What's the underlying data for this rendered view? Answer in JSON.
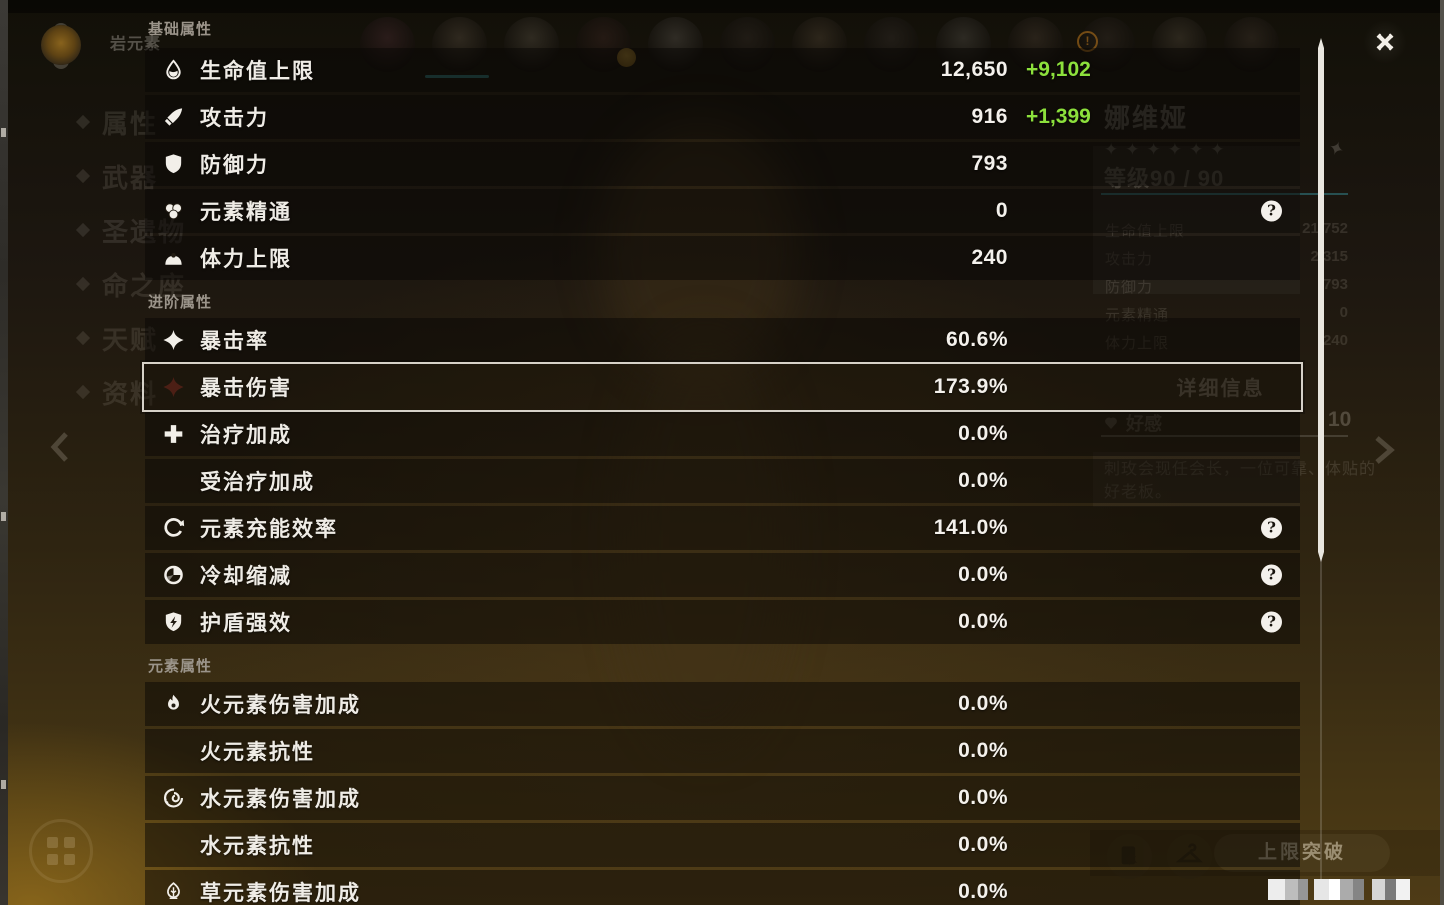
{
  "panel": {
    "help_glyph": "?",
    "sections": [
      {
        "title": "基础属性",
        "rows": [
          {
            "key": "max-hp",
            "icon": "hp",
            "label": "生命值上限",
            "value": "12,650",
            "bonus": "+9,102"
          },
          {
            "key": "atk",
            "icon": "atk",
            "label": "攻击力",
            "value": "916",
            "bonus": "+1,399"
          },
          {
            "key": "def",
            "icon": "def",
            "label": "防御力",
            "value": "793"
          },
          {
            "key": "elemental-mastery",
            "icon": "em",
            "label": "元素精通",
            "value": "0",
            "help": true
          },
          {
            "key": "max-stamina",
            "icon": "stamina",
            "label": "体力上限",
            "value": "240"
          }
        ]
      },
      {
        "title": "进阶属性",
        "rows": [
          {
            "key": "crit-rate",
            "icon": "crit",
            "label": "暴击率",
            "value": "60.6%"
          },
          {
            "key": "crit-dmg",
            "icon": "critdmg",
            "label": "暴击伤害",
            "value": "173.9%",
            "highlighted": true
          },
          {
            "key": "healing-bonus",
            "icon": "heal",
            "label": "治疗加成",
            "value": "0.0%"
          },
          {
            "key": "incoming-healing-bonus",
            "icon": "",
            "label": "受治疗加成",
            "value": "0.0%"
          },
          {
            "key": "energy-recharge",
            "icon": "er",
            "label": "元素充能效率",
            "value": "141.0%",
            "help": true
          },
          {
            "key": "cd-reduction",
            "icon": "cd",
            "label": "冷却缩减",
            "value": "0.0%",
            "help": true
          },
          {
            "key": "shield-strength",
            "icon": "shield",
            "label": "护盾强效",
            "value": "0.0%",
            "help": true
          }
        ]
      },
      {
        "title": "元素属性",
        "rows": [
          {
            "key": "pyro-dmg-bonus",
            "icon": "pyro",
            "label": "火元素伤害加成",
            "value": "0.0%"
          },
          {
            "key": "pyro-res",
            "icon": "",
            "label": "火元素抗性",
            "value": "0.0%"
          },
          {
            "key": "hydro-dmg-bonus",
            "icon": "hydro",
            "label": "水元素伤害加成",
            "value": "0.0%"
          },
          {
            "key": "hydro-res",
            "icon": "",
            "label": "水元素抗性",
            "value": "0.0%"
          },
          {
            "key": "dendro-dmg-bonus",
            "icon": "dendro",
            "label": "草元素伤害加成",
            "value": "0.0%"
          }
        ]
      }
    ]
  },
  "background": {
    "element_label": "岩元素",
    "sidebar": [
      "属性",
      "武器",
      "圣遗物",
      "命之座",
      "天赋",
      "资料"
    ],
    "character": {
      "name": "娜维娅",
      "stars": 6,
      "level": "等级90 / 90"
    },
    "stats": [
      {
        "label": "生命值上限",
        "value": "21,752"
      },
      {
        "label": "攻击力",
        "value": "2,315"
      },
      {
        "label": "防御力",
        "value": "793"
      },
      {
        "label": "元素精通",
        "value": "0"
      },
      {
        "label": "体力上限",
        "value": "240"
      }
    ],
    "detail_button": "详细信息",
    "friendship": {
      "label": "好感",
      "value": "10"
    },
    "description": [
      "刺玫会现任会长，一位可靠、体贴的",
      "好老板。"
    ],
    "ascend_button": "上限突破"
  }
}
